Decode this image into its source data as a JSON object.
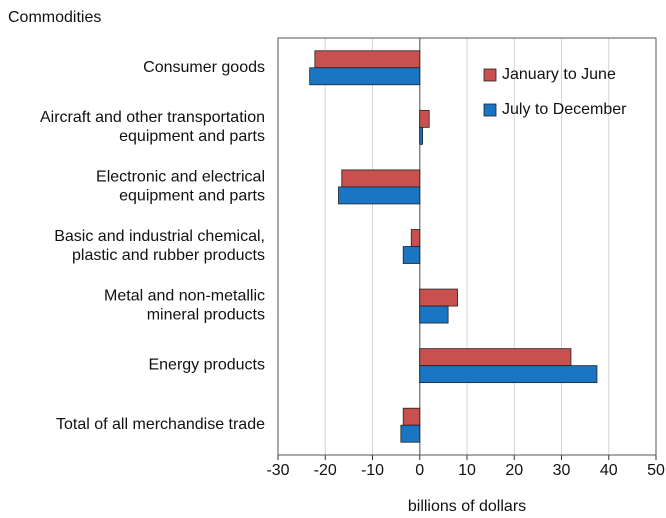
{
  "chart_data": {
    "type": "hbar",
    "title": "Commodities",
    "xlabel": "billions of dollars",
    "categories": [
      [
        "Consumer goods"
      ],
      [
        "Aircraft and other transportation",
        "equipment and parts"
      ],
      [
        "Electronic and electrical",
        "equipment and parts"
      ],
      [
        "Basic and industrial chemical,",
        "plastic and rubber products"
      ],
      [
        "Metal and non-metallic",
        "mineral products"
      ],
      [
        "Energy products"
      ],
      [
        "Total of all merchandise trade"
      ]
    ],
    "series": [
      {
        "name": "January to June",
        "color": "#c8504f",
        "values": [
          -22.2,
          2,
          -16.5,
          -1.8,
          8,
          32,
          -3.5
        ]
      },
      {
        "name": "July to December",
        "color": "#1a75c2",
        "values": [
          -23.3,
          0.6,
          -17.2,
          -3.5,
          6,
          37.5,
          -4
        ]
      }
    ],
    "xlim": [
      -30,
      50
    ],
    "xticks": [
      -30,
      -20,
      -10,
      0,
      10,
      20,
      30,
      40,
      50
    ],
    "grid": true,
    "legend": "upper right"
  }
}
